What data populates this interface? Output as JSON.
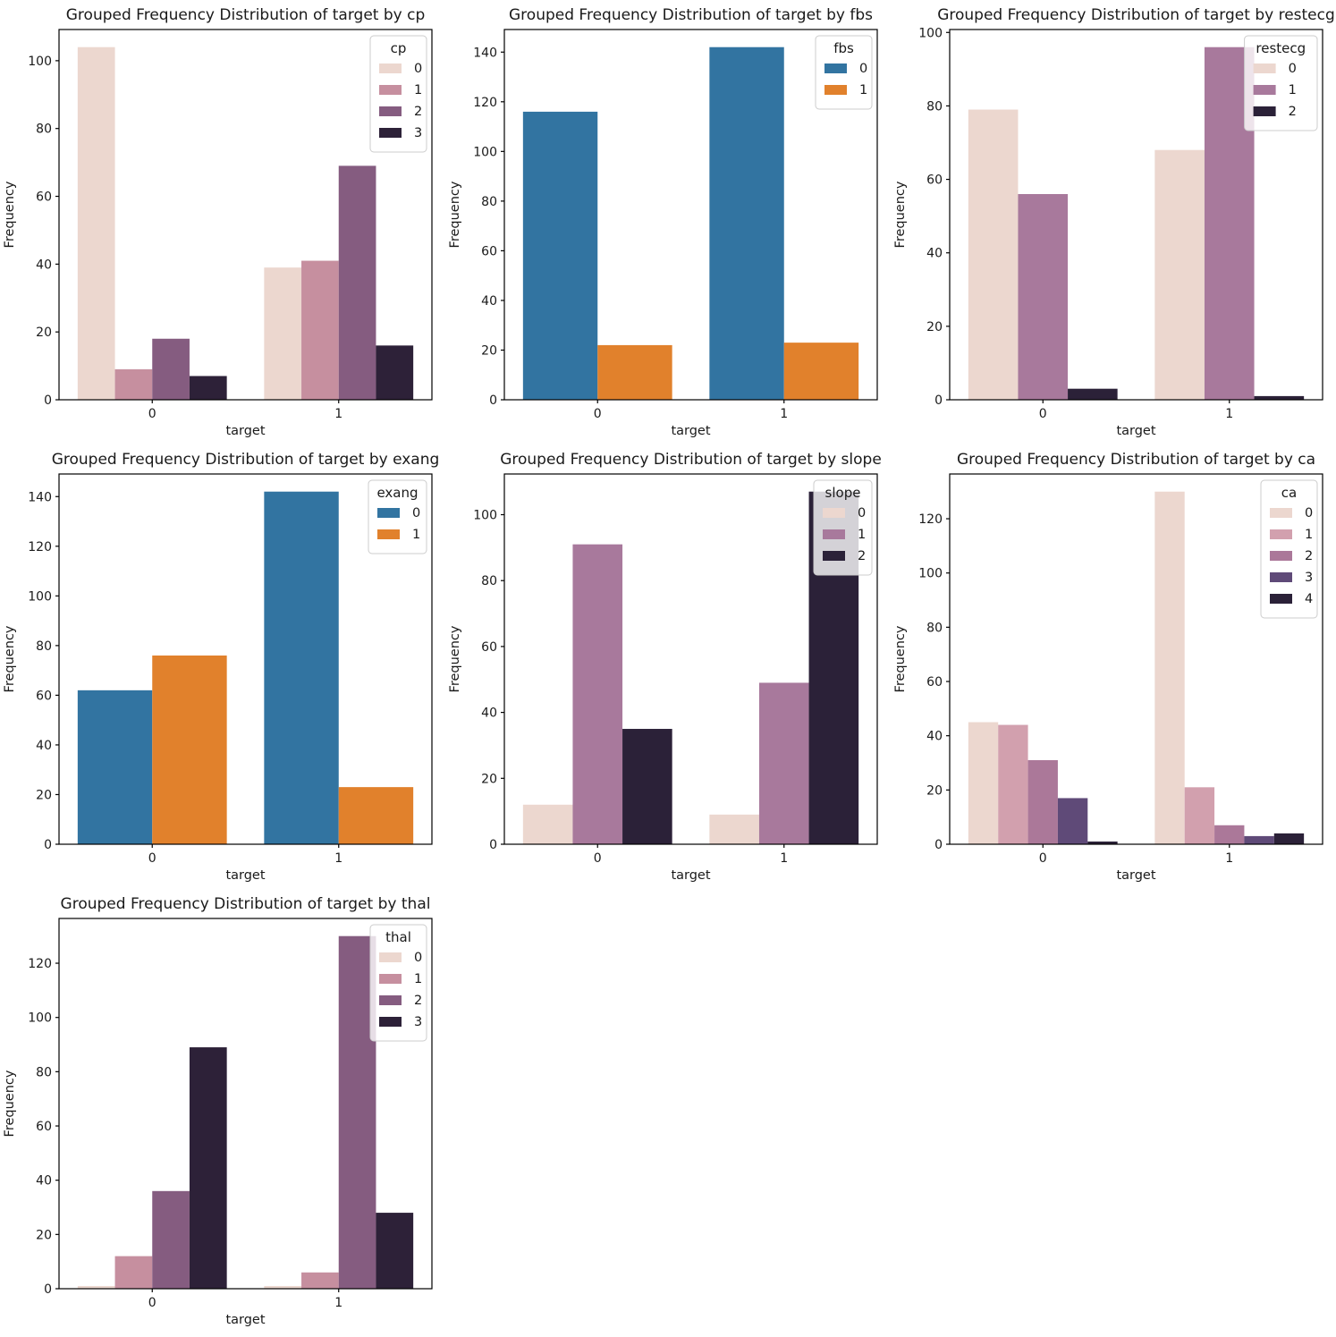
{
  "figure": {
    "background": "#ffffff",
    "grid_columns": 3,
    "grid_rows": 3,
    "empty_cells": 2
  },
  "chart_data": [
    {
      "type": "bar",
      "key": "cp",
      "title": "Grouped Frequency Distribution of target by cp",
      "xlabel": "target",
      "ylabel": "Frequency",
      "categories": [
        "0",
        "1"
      ],
      "legend_title": "cp",
      "legend_position": "upper right",
      "grid": false,
      "yticks": [
        0,
        20,
        40,
        60,
        80,
        100
      ],
      "ylim": [
        0,
        109.2
      ],
      "series": [
        {
          "name": "0",
          "color": "#ecd7cf",
          "values": [
            104,
            39
          ]
        },
        {
          "name": "1",
          "color": "#c68f9f",
          "values": [
            9,
            41
          ]
        },
        {
          "name": "2",
          "color": "#855c80",
          "values": [
            18,
            69
          ]
        },
        {
          "name": "3",
          "color": "#2d2138",
          "values": [
            7,
            16
          ]
        }
      ]
    },
    {
      "type": "bar",
      "key": "fbs",
      "title": "Grouped Frequency Distribution of target by fbs",
      "xlabel": "target",
      "ylabel": "Frequency",
      "categories": [
        "0",
        "1"
      ],
      "legend_title": "fbs",
      "legend_position": "upper right",
      "grid": false,
      "yticks": [
        0,
        20,
        40,
        60,
        80,
        100,
        120,
        140
      ],
      "ylim": [
        0,
        149.1
      ],
      "series": [
        {
          "name": "0",
          "color": "#3274a1",
          "values": [
            116,
            142
          ]
        },
        {
          "name": "1",
          "color": "#e1812c",
          "values": [
            22,
            23
          ]
        }
      ]
    },
    {
      "type": "bar",
      "key": "restecg",
      "title": "Grouped Frequency Distribution of target by restecg",
      "xlabel": "target",
      "ylabel": "Frequency",
      "categories": [
        "0",
        "1"
      ],
      "legend_title": "restecg",
      "legend_position": "upper right",
      "grid": false,
      "yticks": [
        0,
        20,
        40,
        60,
        80,
        100
      ],
      "ylim": [
        0,
        100.8
      ],
      "series": [
        {
          "name": "0",
          "color": "#ecd7cf",
          "values": [
            79,
            68
          ]
        },
        {
          "name": "1",
          "color": "#a8799c",
          "values": [
            56,
            96
          ]
        },
        {
          "name": "2",
          "color": "#2b2138",
          "values": [
            3,
            1
          ]
        }
      ]
    },
    {
      "type": "bar",
      "key": "exang",
      "title": "Grouped Frequency Distribution of target by exang",
      "xlabel": "target",
      "ylabel": "Frequency",
      "categories": [
        "0",
        "1"
      ],
      "legend_title": "exang",
      "legend_position": "upper right",
      "grid": false,
      "yticks": [
        0,
        20,
        40,
        60,
        80,
        100,
        120,
        140
      ],
      "ylim": [
        0,
        149.1
      ],
      "series": [
        {
          "name": "0",
          "color": "#3274a1",
          "values": [
            62,
            142
          ]
        },
        {
          "name": "1",
          "color": "#e1812c",
          "values": [
            76,
            23
          ]
        }
      ]
    },
    {
      "type": "bar",
      "key": "slope",
      "title": "Grouped Frequency Distribution of target by slope",
      "xlabel": "target",
      "ylabel": "Frequency",
      "categories": [
        "0",
        "1"
      ],
      "legend_title": "slope",
      "legend_position": "upper right",
      "grid": false,
      "yticks": [
        0,
        20,
        40,
        60,
        80,
        100
      ],
      "ylim": [
        0,
        112.35
      ],
      "series": [
        {
          "name": "0",
          "color": "#ecd7cf",
          "values": [
            12,
            9
          ]
        },
        {
          "name": "1",
          "color": "#a8799c",
          "values": [
            91,
            49
          ]
        },
        {
          "name": "2",
          "color": "#2b2138",
          "values": [
            35,
            107
          ]
        }
      ]
    },
    {
      "type": "bar",
      "key": "ca",
      "title": "Grouped Frequency Distribution of target by ca",
      "xlabel": "target",
      "ylabel": "Frequency",
      "categories": [
        "0",
        "1"
      ],
      "legend_title": "ca",
      "legend_position": "upper right",
      "grid": false,
      "yticks": [
        0,
        20,
        40,
        60,
        80,
        100,
        120
      ],
      "ylim": [
        0,
        136.5
      ],
      "series": [
        {
          "name": "0",
          "color": "#ecd7cf",
          "values": [
            45,
            130
          ]
        },
        {
          "name": "1",
          "color": "#d2a0ae",
          "values": [
            44,
            21
          ]
        },
        {
          "name": "2",
          "color": "#ab7899",
          "values": [
            31,
            7
          ]
        },
        {
          "name": "3",
          "color": "#5f4a78",
          "values": [
            17,
            3
          ]
        },
        {
          "name": "4",
          "color": "#2b2138",
          "values": [
            1,
            4
          ]
        }
      ]
    },
    {
      "type": "bar",
      "key": "thal",
      "title": "Grouped Frequency Distribution of target by thal",
      "xlabel": "target",
      "ylabel": "Frequency",
      "categories": [
        "0",
        "1"
      ],
      "legend_title": "thal",
      "legend_position": "upper right",
      "grid": false,
      "yticks": [
        0,
        20,
        40,
        60,
        80,
        100,
        120
      ],
      "ylim": [
        0,
        136.5
      ],
      "series": [
        {
          "name": "0",
          "color": "#ecd7cf",
          "values": [
            1,
            1
          ]
        },
        {
          "name": "1",
          "color": "#c68f9f",
          "values": [
            12,
            6
          ]
        },
        {
          "name": "2",
          "color": "#855c80",
          "values": [
            36,
            130
          ]
        },
        {
          "name": "3",
          "color": "#2d2138",
          "values": [
            89,
            28
          ]
        }
      ]
    }
  ]
}
